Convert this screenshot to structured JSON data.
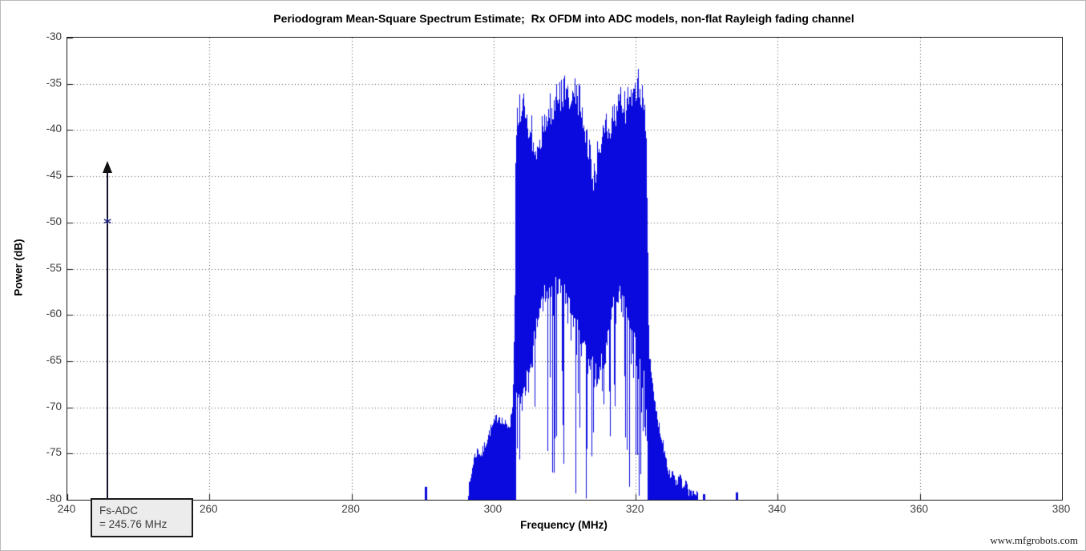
{
  "title": "Periodogram Mean-Square Spectrum Estimate;  Rx OFDM into ADC models, non-flat Rayleigh fading channel",
  "watermark": "www.mfgrobots.com",
  "annotation": {
    "line1": "Fs-ADC",
    "line2": "= 245.76 MHz",
    "freq_mhz": 245.76,
    "arrow_tip_db": -43.5,
    "marker_db": -50
  },
  "chart_data": {
    "type": "line",
    "title": "Periodogram Mean-Square Spectrum Estimate;  Rx OFDM into ADC models, non-flat Rayleigh fading channel",
    "xlabel": "Frequency (MHz)",
    "ylabel": "Power (dB)",
    "xlim": [
      240,
      380
    ],
    "ylim": [
      -80,
      -30
    ],
    "xticks": [
      240,
      260,
      280,
      300,
      320,
      340,
      360,
      380
    ],
    "yticks": [
      -30,
      -35,
      -40,
      -45,
      -50,
      -55,
      -60,
      -65,
      -70,
      -75,
      -80
    ],
    "grid": true,
    "grid_style": "dotted",
    "line_color": "#0a0ade",
    "marker": {
      "x": 245.76,
      "y": -50,
      "style": "*",
      "color": "#23237c"
    },
    "annotation": {
      "text": [
        "Fs-ADC",
        "= 245.76 MHz"
      ],
      "arrow_x_mhz": 245.76,
      "arrow_tip_db": -43.5
    },
    "signal_band_mhz": [
      303.15,
      321.68
    ],
    "notch": {
      "freq_mhz": 314.1,
      "depth_db": -43.7
    },
    "upper_envelope": [
      [
        296.2,
        -80
      ],
      [
        296.7,
        -78.2
      ],
      [
        297.2,
        -75.6
      ],
      [
        297.8,
        -74.6
      ],
      [
        298.3,
        -75.2
      ],
      [
        299.0,
        -73.6
      ],
      [
        299.6,
        -72.4
      ],
      [
        300.0,
        -71.9
      ],
      [
        300.4,
        -71.2
      ],
      [
        300.8,
        -70.9
      ],
      [
        301.3,
        -71.6
      ],
      [
        301.9,
        -72.1
      ],
      [
        302.4,
        -71.6
      ],
      [
        302.75,
        -69
      ],
      [
        303.0,
        -58
      ],
      [
        303.15,
        -40
      ],
      [
        303.3,
        -36.2
      ],
      [
        303.6,
        -35.4
      ],
      [
        303.9,
        -36.2
      ],
      [
        304.3,
        -35.3
      ],
      [
        304.8,
        -36.9
      ],
      [
        305.4,
        -38.3
      ],
      [
        306.0,
        -39.9
      ],
      [
        306.5,
        -39.1
      ],
      [
        307.0,
        -37.2
      ],
      [
        307.6,
        -36.3
      ],
      [
        308.2,
        -35.7
      ],
      [
        308.8,
        -35.0
      ],
      [
        309.5,
        -34.5
      ],
      [
        310.1,
        -34.0
      ],
      [
        310.7,
        -34.5
      ],
      [
        311.3,
        -33.7
      ],
      [
        311.9,
        -34.7
      ],
      [
        312.4,
        -35.7
      ],
      [
        312.9,
        -37.7
      ],
      [
        313.4,
        -40.2
      ],
      [
        313.9,
        -42.9
      ],
      [
        314.15,
        -43.7
      ],
      [
        314.5,
        -41.4
      ],
      [
        314.9,
        -39.5
      ],
      [
        315.3,
        -37.7
      ],
      [
        315.8,
        -36.3
      ],
      [
        316.3,
        -38.1
      ],
      [
        316.9,
        -36.7
      ],
      [
        317.4,
        -35.9
      ],
      [
        318.0,
        -35.0
      ],
      [
        318.6,
        -35.7
      ],
      [
        319.2,
        -34.3
      ],
      [
        319.8,
        -33.7
      ],
      [
        320.3,
        -33.0
      ],
      [
        320.7,
        -33.9
      ],
      [
        321.1,
        -35.1
      ],
      [
        321.5,
        -37.2
      ],
      [
        321.68,
        -50
      ],
      [
        321.9,
        -64
      ],
      [
        322.3,
        -67.2
      ],
      [
        322.8,
        -70.1
      ],
      [
        323.3,
        -72.0
      ],
      [
        323.9,
        -74.0
      ],
      [
        324.4,
        -75.9
      ],
      [
        324.9,
        -77.4
      ],
      [
        325.3,
        -76.9
      ],
      [
        325.8,
        -78.4
      ],
      [
        326.2,
        -77.3
      ],
      [
        326.7,
        -78.9
      ],
      [
        327.2,
        -78.3
      ],
      [
        327.7,
        -79.5
      ],
      [
        328.2,
        -79.0
      ],
      [
        328.7,
        -79.7
      ],
      [
        329.1,
        -80
      ]
    ],
    "solid_floor": [
      [
        303.2,
        -70
      ],
      [
        303.8,
        -71
      ],
      [
        304.5,
        -69
      ],
      [
        305.2,
        -66
      ],
      [
        306,
        -62.5
      ],
      [
        307,
        -59
      ],
      [
        308,
        -59.5
      ],
      [
        309,
        -58
      ],
      [
        310,
        -59
      ],
      [
        311,
        -61
      ],
      [
        312,
        -63.5
      ],
      [
        313,
        -65
      ],
      [
        314,
        -66.5
      ],
      [
        315,
        -67
      ],
      [
        316,
        -64.5
      ],
      [
        317,
        -60
      ],
      [
        317.8,
        -58.5
      ],
      [
        318.6,
        -61
      ],
      [
        319.4,
        -63.5
      ],
      [
        320.2,
        -65
      ],
      [
        320.8,
        -66.5
      ],
      [
        321.3,
        -69
      ],
      [
        321.68,
        -71
      ]
    ],
    "deep_line_prob": [
      [
        303.2,
        0.55
      ],
      [
        305,
        0.5
      ],
      [
        306,
        0.4
      ],
      [
        307,
        0.35
      ],
      [
        308,
        0.38
      ],
      [
        309,
        0.4
      ],
      [
        310,
        0.42
      ],
      [
        311,
        0.45
      ],
      [
        312,
        0.5
      ],
      [
        313,
        0.52
      ],
      [
        314,
        0.58
      ],
      [
        315,
        0.58
      ],
      [
        316,
        0.52
      ],
      [
        317,
        0.42
      ],
      [
        318,
        0.4
      ],
      [
        319,
        0.42
      ],
      [
        320,
        0.45
      ],
      [
        321,
        0.5
      ],
      [
        321.68,
        0.55
      ]
    ],
    "deep_line_min": [
      [
        303.2,
        -78.5
      ],
      [
        305,
        -80
      ],
      [
        307,
        -80
      ],
      [
        309,
        -80
      ],
      [
        311,
        -80
      ],
      [
        313,
        -80
      ],
      [
        315,
        -80
      ],
      [
        317,
        -78.5
      ],
      [
        319,
        -80
      ],
      [
        321,
        -80
      ],
      [
        321.68,
        -80
      ]
    ],
    "baseline_blips": [
      [
        290.4,
        -78.6
      ],
      [
        329.6,
        -79.4
      ],
      [
        334.2,
        -79.2
      ]
    ],
    "noise_seed": 7
  }
}
